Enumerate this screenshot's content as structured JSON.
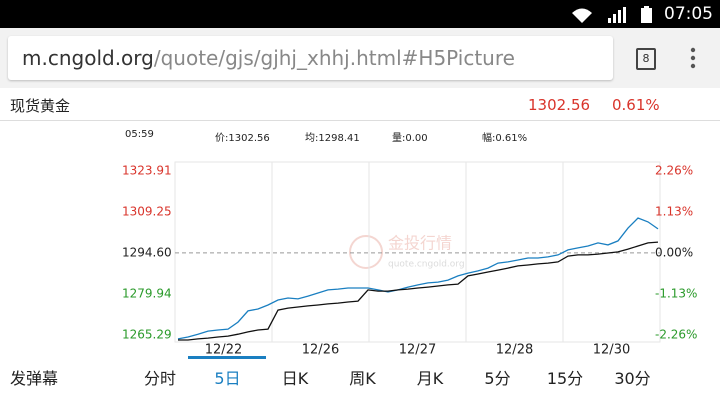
{
  "status_bar": {
    "time": "07:05"
  },
  "address_bar": {
    "domain": "m.cngold.org",
    "path": "/quote/gjs/gjhj_xhhj.html#H5Picture",
    "tab_count": "8"
  },
  "quote": {
    "name": "现货黄金",
    "price": "1302.56",
    "change": "0.61%"
  },
  "info": {
    "time": "05:59",
    "price": "价:1302.56",
    "average": "均:1298.41",
    "volume": "量:0.00",
    "range": "幅:0.61%"
  },
  "watermark": {
    "title": "金投行情",
    "url": "quote.cngold.org"
  },
  "chart_data": {
    "type": "line",
    "x_labels": [
      "12/22",
      "12/26",
      "12/27",
      "12/28",
      "12/30"
    ],
    "series": [
      {
        "color": "#1a7fc1",
        "values": [
          1263.9,
          1264.6,
          1265.6,
          1266.7,
          1267.1,
          1267.4,
          1269.9,
          1273.9,
          1274.6,
          1276.0,
          1277.8,
          1278.5,
          1278.2,
          1279.2,
          1280.3,
          1281.4,
          1281.7,
          1282.1,
          1282.1,
          1282.1,
          1281.4,
          1280.7,
          1281.4,
          1282.4,
          1283.2,
          1283.9,
          1284.2,
          1284.9,
          1286.4,
          1287.4,
          1288.2,
          1289.2,
          1291.0,
          1291.4,
          1292.1,
          1292.8,
          1292.8,
          1293.2,
          1293.9,
          1295.7,
          1296.4,
          1297.1,
          1298.2,
          1297.5,
          1298.9,
          1303.5,
          1307.1,
          1305.7,
          1303.2
        ]
      },
      {
        "color": "#111111",
        "values": [
          1263.5,
          1263.5,
          1263.9,
          1264.2,
          1264.6,
          1264.9,
          1265.6,
          1266.4,
          1267.1,
          1267.4,
          1274.2,
          1274.9,
          1275.3,
          1275.7,
          1276.0,
          1276.4,
          1276.7,
          1277.1,
          1277.4,
          1281.4,
          1281.0,
          1281.0,
          1281.4,
          1281.7,
          1282.1,
          1282.4,
          1282.8,
          1283.2,
          1283.5,
          1286.4,
          1287.1,
          1287.8,
          1288.5,
          1289.2,
          1290.0,
          1290.3,
          1290.7,
          1291.0,
          1291.4,
          1293.5,
          1293.9,
          1293.9,
          1294.2,
          1294.6,
          1295.0,
          1296.0,
          1297.1,
          1298.2,
          1298.5
        ]
      }
    ],
    "ylim": [
      1262.8,
      1327.1
    ],
    "yticks": [
      1323.91,
      1309.25,
      {
        "value": 1294.6,
        "label": "1294.60"
      },
      1279.94,
      1265.29
    ],
    "y2lim": [
      -2.46,
      2.51
    ],
    "y2ticks": [
      {
        "value": 2.26,
        "label": "2.26%"
      },
      {
        "value": 1.13,
        "label": "1.13%"
      },
      {
        "value": 0,
        "label": "0.00%"
      },
      {
        "value": -1.13,
        "label": "-1.13%"
      },
      {
        "value": -2.26,
        "label": "-2.26%"
      }
    ],
    "up_color": "#d9342b",
    "down_color": "#2a9a2a"
  },
  "tabs": {
    "danmaku": "发弹幕",
    "items": [
      "分时",
      "5日",
      "日K",
      "周K",
      "月K",
      "5分",
      "15分",
      "30分"
    ],
    "selected": 1,
    "selected_color": "#1a7fc1"
  }
}
